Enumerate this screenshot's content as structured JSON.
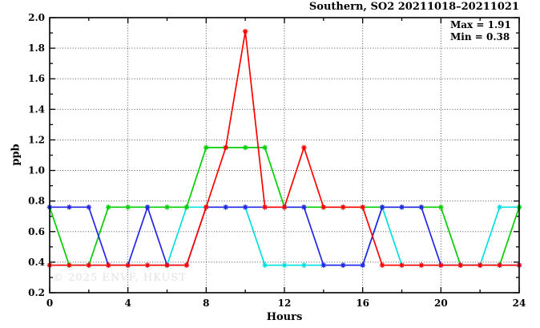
{
  "header": {
    "title": "Southern, SO2 20211018–20211021"
  },
  "annotation": {
    "max_label": "Max = 1.91",
    "min_label": "Min = 0.38"
  },
  "watermark": "© 2025 ENVF, HKUST",
  "colors": {
    "axis": "#000000",
    "grid": "#3a3a3a",
    "watermark": "#e2e2e2"
  },
  "chart_data": {
    "type": "line",
    "title": "Southern, SO2 20211018–20211021",
    "xlabel": "Hours",
    "ylabel": "ppb",
    "xlim": [
      0,
      24
    ],
    "ylim": [
      0.2,
      2.0
    ],
    "x_major_ticks": [
      0,
      4,
      8,
      12,
      16,
      20,
      24
    ],
    "x_minor_ticks": [
      2,
      6,
      10,
      14,
      18,
      22
    ],
    "y_major_ticks": [
      0.2,
      0.4,
      0.6,
      0.8,
      1.0,
      1.2,
      1.4,
      1.6,
      1.8,
      2.0
    ],
    "y_minor_ticks": [
      0.3,
      0.5,
      0.7,
      0.9,
      1.1,
      1.3,
      1.5,
      1.7,
      1.9
    ],
    "grid_x": [
      4,
      8,
      12,
      16,
      20
    ],
    "grid_y": [
      0.4,
      0.6,
      0.8,
      1.0,
      1.2,
      1.4,
      1.6,
      1.8
    ],
    "grid_style": "dotted",
    "legend_position": "none",
    "marker": "asterisk",
    "stats": {
      "max": 1.91,
      "min": 0.38
    },
    "x": [
      0,
      1,
      2,
      3,
      4,
      5,
      6,
      7,
      8,
      9,
      10,
      11,
      12,
      13,
      14,
      15,
      16,
      17,
      18,
      19,
      20,
      21,
      22,
      23,
      24
    ],
    "series": [
      {
        "name": "series-cyan",
        "color": "#00e0e0",
        "values": [
          0.38,
          0.38,
          0.38,
          0.38,
          0.38,
          0.38,
          0.38,
          0.76,
          0.76,
          0.76,
          0.76,
          0.38,
          0.38,
          0.38,
          0.38,
          0.38,
          0.38,
          0.76,
          0.38,
          0.38,
          0.38,
          0.38,
          0.38,
          0.76,
          0.76
        ]
      },
      {
        "name": "series-green",
        "color": "#00cf00",
        "values": [
          0.76,
          0.38,
          0.38,
          0.76,
          0.76,
          0.76,
          0.76,
          0.76,
          1.15,
          1.15,
          1.15,
          1.15,
          0.76,
          0.76,
          0.76,
          0.76,
          0.76,
          0.76,
          0.76,
          0.76,
          0.76,
          0.38,
          0.38,
          0.38,
          0.76
        ]
      },
      {
        "name": "series-blue",
        "color": "#2525e8",
        "values": [
          0.76,
          0.76,
          0.76,
          0.38,
          0.38,
          0.76,
          0.38,
          0.38,
          0.76,
          0.76,
          0.76,
          0.76,
          0.76,
          0.76,
          0.38,
          0.38,
          0.38,
          0.76,
          0.76,
          0.76,
          0.38,
          0.38,
          0.38,
          0.38,
          0.38
        ]
      },
      {
        "name": "series-red",
        "color": "#fe0000",
        "values": [
          0.38,
          0.38,
          0.38,
          0.38,
          0.38,
          0.38,
          0.38,
          0.38,
          0.76,
          1.15,
          1.91,
          0.76,
          0.76,
          1.15,
          0.76,
          0.76,
          0.76,
          0.38,
          0.38,
          0.38,
          0.38,
          0.38,
          0.38,
          0.38,
          0.38
        ]
      }
    ]
  }
}
